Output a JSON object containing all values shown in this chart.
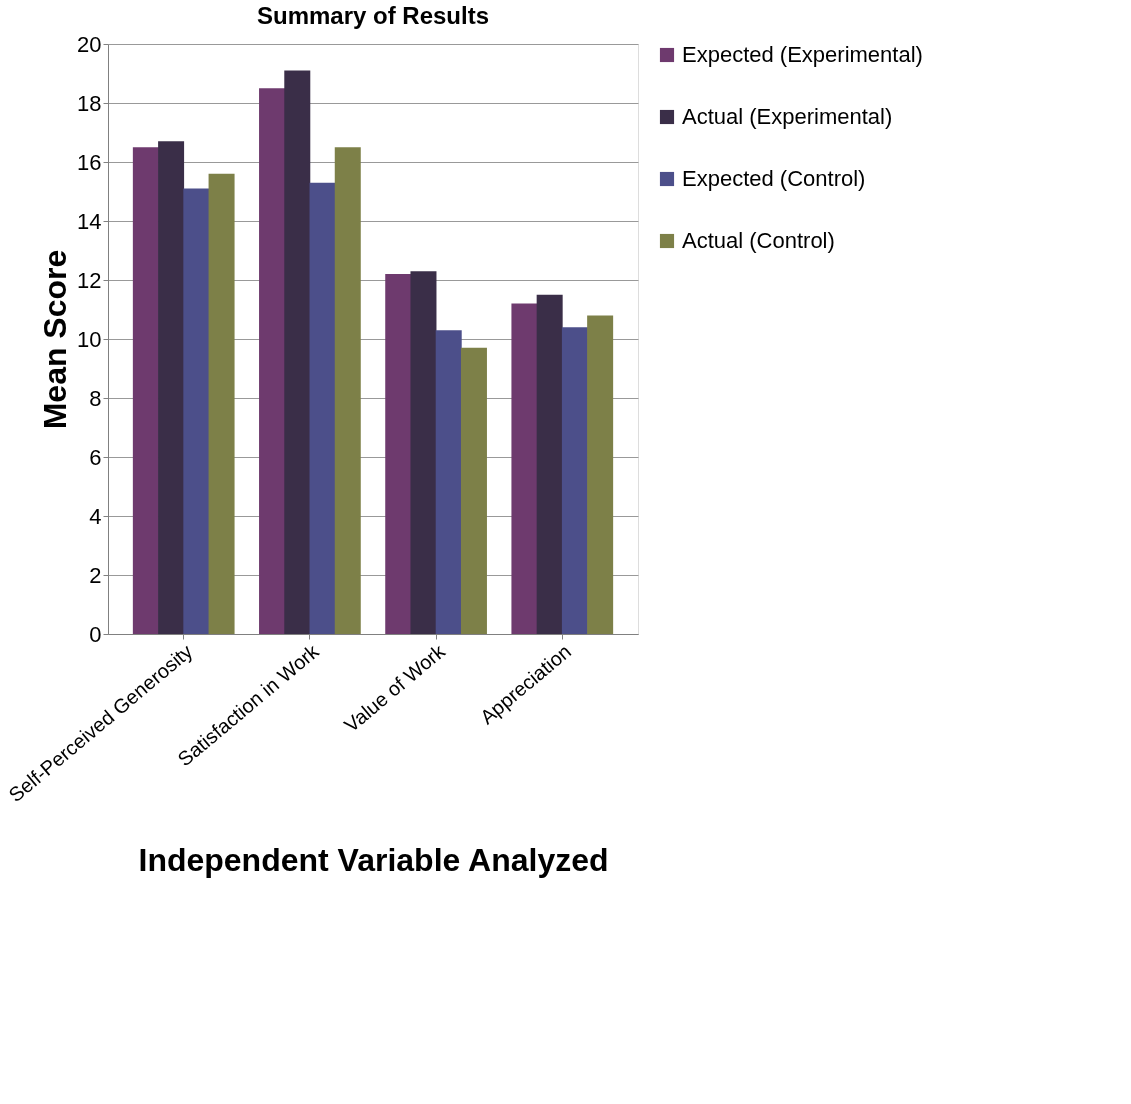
{
  "chart_data": {
    "type": "bar",
    "title": "Summary of Results",
    "xlabel": "Independent Variable Analyzed",
    "ylabel": "Mean Score",
    "categories": [
      "Self-Perceived Generosity",
      "Satisfaction in Work",
      "Value of Work",
      "Appreciation"
    ],
    "series": [
      {
        "name": "Expected (Experimental)",
        "color": "#6e3a6e",
        "values": [
          16.5,
          18.5,
          12.2,
          11.2
        ]
      },
      {
        "name": "Actual (Experimental)",
        "color": "#3a2e48",
        "values": [
          16.7,
          19.1,
          12.3,
          11.5
        ]
      },
      {
        "name": "Expected (Control)",
        "color": "#4c4f8a",
        "values": [
          15.1,
          15.3,
          10.3,
          10.4
        ]
      },
      {
        "name": "Actual (Control)",
        "color": "#7d8048",
        "values": [
          15.6,
          16.5,
          9.7,
          10.8
        ]
      }
    ],
    "ylim": [
      0,
      20
    ],
    "yticks": [
      0,
      2,
      4,
      6,
      8,
      10,
      12,
      14,
      16,
      18,
      20
    ],
    "grid": "y",
    "legend": "right"
  }
}
